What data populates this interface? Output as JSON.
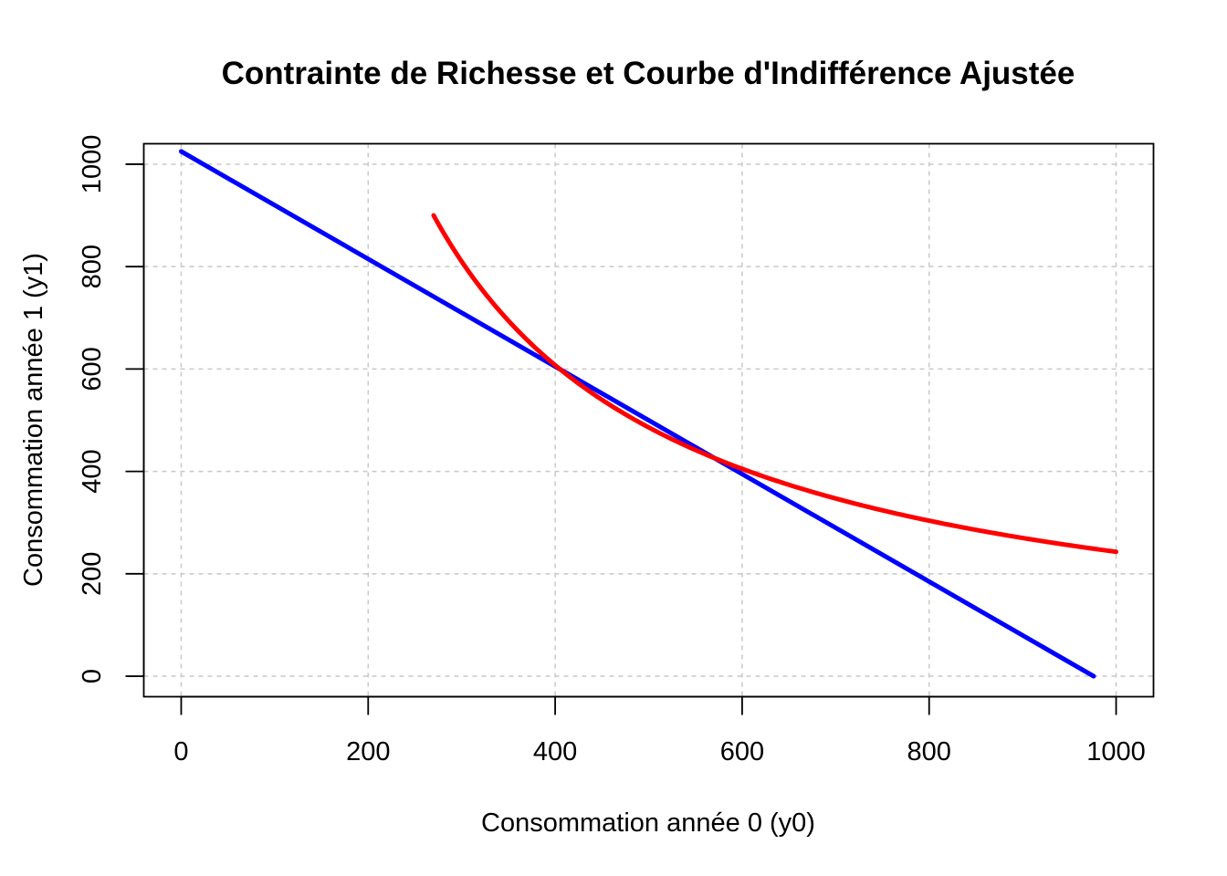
{
  "chart_data": {
    "type": "line",
    "title": "Contrainte de Richesse et Courbe d'Indifférence Ajustée",
    "xlabel": "Consommation année 0 (y0)",
    "ylabel": "Consommation année 1 (y1)",
    "xlim": [
      -40,
      1040
    ],
    "ylim": [
      -40,
      1040
    ],
    "x_ticks": [
      0,
      200,
      400,
      600,
      800,
      1000
    ],
    "y_ticks": [
      0,
      200,
      400,
      600,
      800,
      1000
    ],
    "x_tick_labels": [
      "0",
      "200",
      "400",
      "600",
      "800",
      "1000"
    ],
    "y_tick_labels": [
      "0",
      "200",
      "400",
      "600",
      "800",
      "1000"
    ],
    "grid": true,
    "series": [
      {
        "kind": "straight",
        "color": "#0000ff",
        "x": [
          0,
          976
        ],
        "y": [
          1025,
          0
        ]
      },
      {
        "kind": "hyperbola",
        "color": "#ff0000",
        "x_range": [
          270,
          1000
        ],
        "k": 243000,
        "x": [
          270,
          300,
          350,
          400,
          450,
          500,
          550,
          600,
          700,
          800,
          900,
          1000
        ],
        "y": [
          955,
          853,
          732,
          640,
          568,
          511,
          465,
          426,
          365,
          320,
          284,
          243
        ]
      }
    ]
  }
}
